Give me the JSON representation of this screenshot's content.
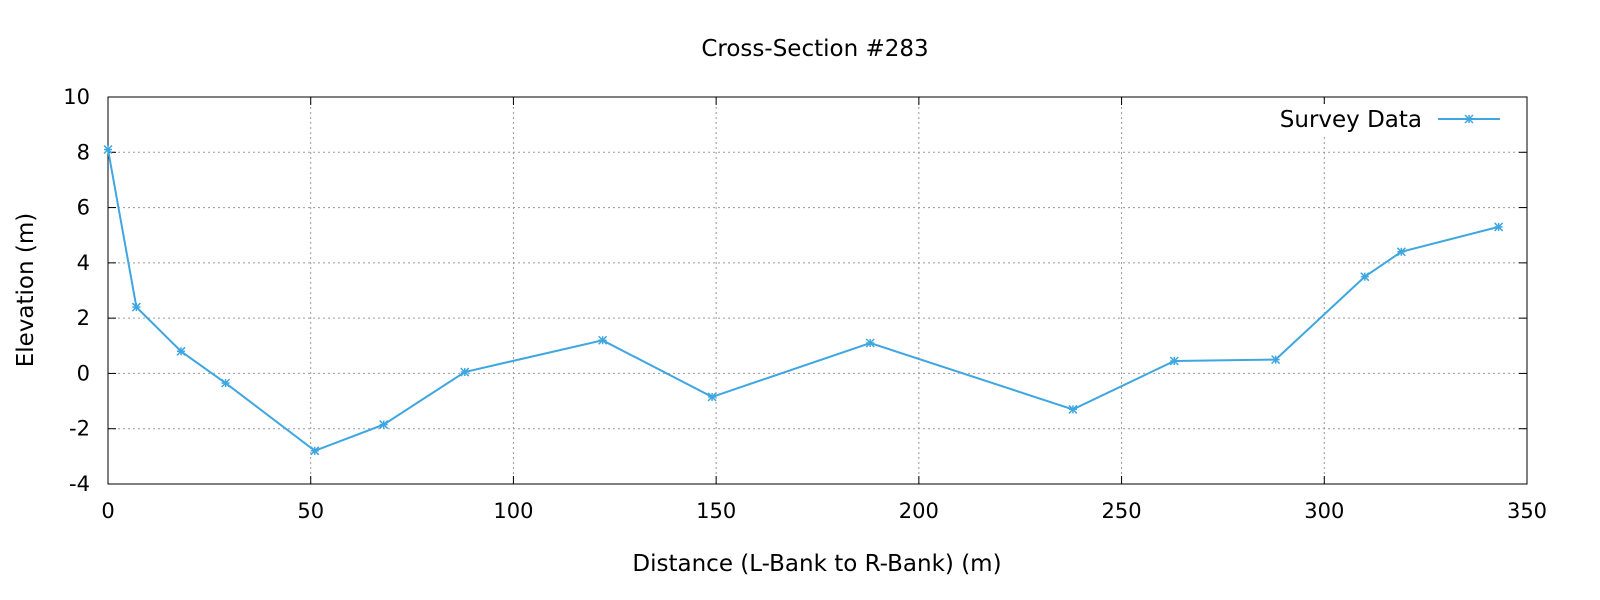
{
  "chart_data": {
    "type": "line",
    "title": "Cross-Section #283",
    "xlabel": "Distance (L-Bank to R-Bank) (m)",
    "ylabel": "Elevation (m)",
    "xlim": [
      0,
      350
    ],
    "ylim": [
      -4,
      10
    ],
    "xticks": [
      0,
      50,
      100,
      150,
      200,
      250,
      300,
      350
    ],
    "yticks": [
      -4,
      -2,
      0,
      2,
      4,
      6,
      8,
      10
    ],
    "grid": true,
    "legend_position": "top-right",
    "series": [
      {
        "name": "Survey Data",
        "color": "#3ea6e0",
        "marker": "asterisk",
        "x": [
          0,
          7,
          18,
          29,
          51,
          68,
          88,
          122,
          149,
          188,
          238,
          263,
          288,
          310,
          319,
          343
        ],
        "y": [
          8.1,
          2.4,
          0.8,
          -0.35,
          -2.8,
          -1.85,
          0.05,
          1.2,
          -0.85,
          1.1,
          -1.3,
          0.45,
          0.5,
          3.5,
          4.4,
          5.3
        ]
      }
    ]
  }
}
